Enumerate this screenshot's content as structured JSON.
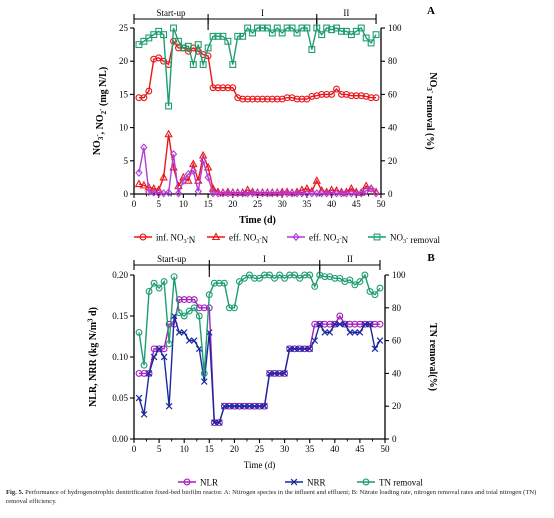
{
  "figure": {
    "caption_label": "Fig. 5.",
    "caption_text": "Performance of hydrogenotrophic denitrification fixed-bed biofilm reactor. A: Nitrogen species in the influent and effluent; B: Nitrate loading rate, nitrogen removal rates and total nitrogen (TN) removal efficiency."
  },
  "chart_data": [
    {
      "type": "line",
      "panel_label": "A",
      "xlabel": "Time (d)",
      "ylabel": "NO3-, NO2- (mg N/L)",
      "y2label": "NO3- removal (%)",
      "xlim": [
        0,
        50
      ],
      "ylim": [
        0,
        25
      ],
      "y2lim": [
        0,
        100
      ],
      "x_ticks": [
        0,
        5,
        10,
        15,
        20,
        25,
        30,
        35,
        40,
        45,
        50
      ],
      "y_ticks": [
        0,
        5,
        10,
        15,
        20,
        25
      ],
      "y2_ticks": [
        0,
        20,
        40,
        60,
        80,
        100
      ],
      "phases": [
        {
          "label": "Start-up",
          "start": 0,
          "end": 15
        },
        {
          "label": "I",
          "start": 15,
          "end": 37
        },
        {
          "label": "II",
          "start": 37,
          "end": 49
        }
      ],
      "legend_position": "bottom",
      "series": [
        {
          "name": "inf. NO3--N",
          "legend": "inf. NO3-N",
          "color": "#e8161b",
          "marker": "circle",
          "axis": "left",
          "x": [
            1,
            2,
            3,
            4,
            5,
            6,
            7,
            8,
            9,
            10,
            11,
            12,
            13,
            14,
            15,
            16,
            17,
            18,
            19,
            20,
            21,
            22,
            23,
            24,
            25,
            26,
            27,
            28,
            29,
            30,
            31,
            32,
            33,
            34,
            35,
            36,
            37,
            38,
            39,
            40,
            41,
            42,
            43,
            44,
            45,
            46,
            47,
            48,
            49
          ],
          "values": [
            14.5,
            14.5,
            15.5,
            20.3,
            20.5,
            20,
            19.5,
            23,
            22,
            22,
            21.5,
            22,
            21.5,
            21,
            20.8,
            16,
            16,
            16,
            16,
            16,
            14.5,
            14.3,
            14.3,
            14.3,
            14.3,
            14.3,
            14.3,
            14.3,
            14.3,
            14.3,
            14.5,
            14.5,
            14.3,
            14.3,
            14.3,
            14.7,
            14.8,
            15,
            15,
            15,
            15.8,
            15,
            15,
            14.8,
            14.8,
            14.8,
            14.7,
            14.5,
            14.5
          ]
        },
        {
          "name": "eff. NO3--N",
          "legend": "eff. NO3-N",
          "color": "#e8161b",
          "marker": "triangle",
          "axis": "left",
          "x": [
            1,
            2,
            3,
            4,
            5,
            6,
            7,
            8,
            9,
            10,
            11,
            12,
            13,
            14,
            15,
            16,
            17,
            18,
            19,
            20,
            21,
            22,
            23,
            24,
            25,
            26,
            27,
            28,
            29,
            30,
            31,
            32,
            33,
            34,
            35,
            36,
            37,
            38,
            39,
            40,
            41,
            42,
            43,
            44,
            45,
            46,
            47,
            48,
            49
          ],
          "values": [
            1.5,
            1.3,
            1.0,
            0.8,
            0.6,
            2.5,
            9.0,
            4.0,
            1.2,
            2.5,
            2.0,
            4.5,
            2.0,
            5.8,
            4.0,
            0.8,
            0.3,
            0.2,
            0.3,
            0.2,
            0.2,
            0.2,
            0.6,
            0.3,
            0.2,
            0.2,
            0.2,
            0.2,
            0.2,
            0.3,
            0.3,
            0.2,
            0.3,
            0.6,
            0.8,
            0.4,
            2.0,
            0.5,
            0.3,
            0.6,
            0.5,
            0.3,
            0.3,
            0.8,
            0.3,
            0.2,
            1.2,
            0.8,
            0.3
          ]
        },
        {
          "name": "eff. NO2--N",
          "legend": "eff. NO2-N",
          "color": "#b33bd6",
          "marker": "diamond",
          "axis": "left",
          "x": [
            1,
            2,
            3,
            4,
            5,
            6,
            7,
            8,
            9,
            10,
            11,
            12,
            13,
            14,
            15,
            16,
            17,
            18,
            19,
            20,
            21,
            22,
            23,
            24,
            25,
            26,
            27,
            28,
            29,
            30,
            31,
            32,
            33,
            34,
            35,
            36,
            37,
            38,
            39,
            40,
            41,
            42,
            43,
            44,
            45,
            46,
            47,
            48,
            49
          ],
          "values": [
            3.2,
            7.0,
            0.3,
            0.2,
            0.1,
            0.1,
            0.2,
            6.0,
            0.1,
            2.0,
            3.0,
            3.5,
            0.4,
            5.0,
            2.5,
            0.1,
            0.1,
            0.1,
            0.1,
            0.1,
            0.1,
            0.1,
            0.1,
            0.1,
            0.1,
            0.1,
            0.1,
            0.1,
            0.1,
            0.1,
            0.1,
            0.1,
            0.1,
            0.1,
            0.1,
            0.1,
            0.1,
            0.1,
            0.1,
            0.1,
            0.1,
            0.1,
            0.1,
            0.1,
            0.1,
            0.1,
            0.5,
            0.8,
            0.1
          ]
        },
        {
          "name": "NO3- removal",
          "legend": "NO3- removal",
          "color": "#1e9e6e",
          "marker": "square",
          "axis": "right",
          "x": [
            1,
            2,
            3,
            4,
            5,
            6,
            7,
            8,
            9,
            10,
            11,
            12,
            13,
            14,
            15,
            16,
            17,
            18,
            19,
            20,
            21,
            22,
            23,
            24,
            25,
            26,
            27,
            28,
            29,
            30,
            31,
            32,
            33,
            34,
            35,
            36,
            37,
            38,
            39,
            40,
            41,
            42,
            43,
            44,
            45,
            46,
            47,
            48,
            49
          ],
          "values": [
            90,
            92,
            94,
            96,
            98,
            96,
            53,
            100,
            92,
            88,
            89,
            78,
            90,
            78,
            88,
            95,
            95,
            95,
            92,
            78,
            95,
            95,
            100,
            97,
            100,
            100,
            100,
            97,
            100,
            97,
            100,
            100,
            97,
            100,
            100,
            87,
            100,
            96,
            100,
            99,
            100,
            98,
            98,
            96,
            98,
            100,
            94,
            91,
            96
          ]
        }
      ]
    },
    {
      "type": "line",
      "panel_label": "B",
      "xlabel": "Time (d)",
      "ylabel": "NLR, NRR (kg N/m3 d)",
      "y2label": "TN removal(%)",
      "xlim": [
        0,
        50
      ],
      "ylim": [
        0,
        0.2
      ],
      "y2lim": [
        0,
        100
      ],
      "x_ticks": [
        0,
        5,
        10,
        15,
        20,
        25,
        30,
        35,
        40,
        45,
        50
      ],
      "y_ticks": [
        0.0,
        0.05,
        0.1,
        0.15,
        0.2
      ],
      "y2_ticks": [
        0,
        20,
        40,
        60,
        80,
        100
      ],
      "phases": [
        {
          "label": "Start-up",
          "start": 0,
          "end": 15
        },
        {
          "label": "I",
          "start": 15,
          "end": 37
        },
        {
          "label": "II",
          "start": 37,
          "end": 49
        }
      ],
      "legend_position": "bottom",
      "series": [
        {
          "name": "NLR",
          "legend": "NLR",
          "color": "#a61fbf",
          "marker": "circle",
          "axis": "left",
          "x": [
            1,
            2,
            3,
            4,
            5,
            6,
            7,
            8,
            9,
            10,
            11,
            12,
            13,
            14,
            15,
            16,
            17,
            18,
            19,
            20,
            21,
            22,
            23,
            24,
            25,
            26,
            27,
            28,
            29,
            30,
            31,
            32,
            33,
            34,
            35,
            36,
            37,
            38,
            39,
            40,
            41,
            42,
            43,
            44,
            45,
            46,
            47,
            48,
            49
          ],
          "values": [
            0.08,
            0.08,
            0.08,
            0.11,
            0.11,
            0.11,
            0.14,
            0.14,
            0.17,
            0.17,
            0.17,
            0.17,
            0.16,
            0.16,
            0.16,
            0.02,
            0.02,
            0.04,
            0.04,
            0.04,
            0.04,
            0.04,
            0.04,
            0.04,
            0.04,
            0.04,
            0.08,
            0.08,
            0.08,
            0.08,
            0.11,
            0.11,
            0.11,
            0.11,
            0.11,
            0.14,
            0.14,
            0.14,
            0.14,
            0.14,
            0.15,
            0.14,
            0.14,
            0.14,
            0.14,
            0.14,
            0.14,
            0.14,
            0.14
          ]
        },
        {
          "name": "NRR",
          "legend": "NRR",
          "color": "#1a2a9e",
          "marker": "cross",
          "axis": "left",
          "x": [
            1,
            2,
            3,
            4,
            5,
            6,
            7,
            8,
            9,
            10,
            11,
            12,
            13,
            14,
            15,
            16,
            17,
            18,
            19,
            20,
            21,
            22,
            23,
            24,
            25,
            26,
            27,
            28,
            29,
            30,
            31,
            32,
            33,
            34,
            35,
            36,
            37,
            38,
            39,
            40,
            41,
            42,
            43,
            44,
            45,
            46,
            47,
            48,
            49
          ],
          "values": [
            0.05,
            0.03,
            0.08,
            0.1,
            0.11,
            0.1,
            0.04,
            0.15,
            0.13,
            0.13,
            0.12,
            0.12,
            0.11,
            0.07,
            0.13,
            0.02,
            0.02,
            0.04,
            0.04,
            0.04,
            0.04,
            0.04,
            0.04,
            0.04,
            0.04,
            0.04,
            0.08,
            0.08,
            0.08,
            0.08,
            0.11,
            0.11,
            0.11,
            0.11,
            0.11,
            0.12,
            0.14,
            0.13,
            0.13,
            0.14,
            0.14,
            0.14,
            0.13,
            0.13,
            0.13,
            0.14,
            0.14,
            0.11,
            0.12
          ]
        },
        {
          "name": "TN removal",
          "legend": "TN removal",
          "color": "#1e9e6e",
          "marker": "circle",
          "axis": "right",
          "x": [
            1,
            2,
            3,
            4,
            5,
            6,
            7,
            8,
            9,
            10,
            11,
            12,
            13,
            14,
            15,
            16,
            17,
            18,
            19,
            20,
            21,
            22,
            23,
            24,
            25,
            26,
            27,
            28,
            29,
            30,
            31,
            32,
            33,
            34,
            35,
            36,
            37,
            38,
            39,
            40,
            41,
            42,
            43,
            44,
            45,
            46,
            47,
            48,
            49
          ],
          "values": [
            65,
            45,
            90,
            95,
            92,
            96,
            58,
            99,
            77,
            75,
            78,
            80,
            75,
            40,
            88,
            95,
            95,
            95,
            80,
            80,
            96,
            98,
            100,
            98,
            98,
            100,
            100,
            98,
            100,
            98,
            100,
            100,
            98,
            100,
            100,
            93,
            100,
            99,
            99,
            98,
            98,
            96,
            97,
            94,
            96,
            100,
            90,
            88,
            92
          ]
        }
      ]
    }
  ]
}
